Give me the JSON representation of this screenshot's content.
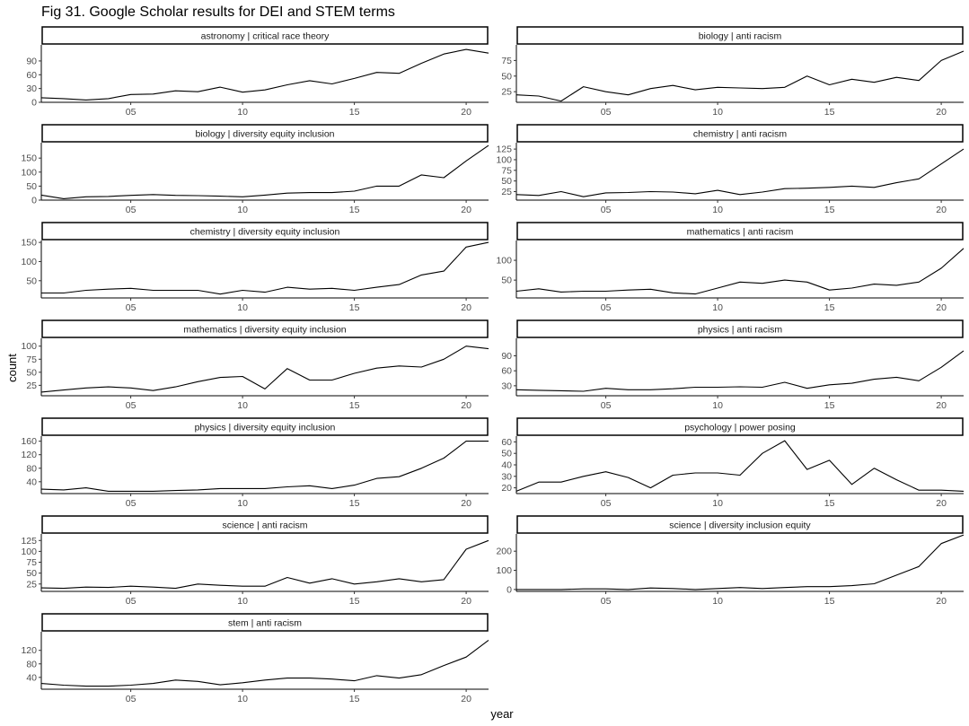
{
  "figure": {
    "title": "Fig 31. Google Scholar results for DEI and STEM terms",
    "xlabel": "year",
    "ylabel": "count"
  },
  "chart_data": {
    "type": "line",
    "layout": "facet-wrap",
    "ncol": 2,
    "x": [
      1,
      2,
      3,
      4,
      5,
      6,
      7,
      8,
      9,
      10,
      11,
      12,
      13,
      14,
      15,
      16,
      17,
      18,
      19,
      20,
      21
    ],
    "xlim": [
      1,
      21
    ],
    "xticks": [
      5,
      10,
      15,
      20
    ],
    "xtick_labels": [
      "05",
      "10",
      "15",
      "20"
    ],
    "line_color": "#000000",
    "grid": false,
    "panels": [
      {
        "label": "astronomy | critical race theory",
        "ylim": [
          0,
          125
        ],
        "yticks": [
          0,
          30,
          60,
          90
        ],
        "values": [
          10,
          8,
          5,
          8,
          17,
          18,
          25,
          23,
          33,
          22,
          27,
          38,
          47,
          40,
          52,
          65,
          63,
          85,
          105,
          115,
          107
        ]
      },
      {
        "label": "biology | anti racism",
        "ylim": [
          8,
          100
        ],
        "yticks": [
          25,
          50,
          75
        ],
        "values": [
          20,
          18,
          10,
          33,
          25,
          20,
          30,
          35,
          28,
          32,
          31,
          30,
          32,
          50,
          36,
          45,
          40,
          48,
          43,
          75,
          90
        ]
      },
      {
        "label": "biology | diversity equity inclusion",
        "ylim": [
          0,
          205
        ],
        "yticks": [
          0,
          50,
          100,
          150
        ],
        "values": [
          18,
          5,
          12,
          13,
          17,
          20,
          17,
          16,
          14,
          12,
          18,
          25,
          27,
          27,
          32,
          50,
          50,
          90,
          80,
          140,
          195
        ]
      },
      {
        "label": "chemistry | anti racism",
        "ylim": [
          5,
          140
        ],
        "yticks": [
          25,
          50,
          75,
          100,
          125
        ],
        "values": [
          18,
          16,
          25,
          13,
          22,
          23,
          25,
          24,
          20,
          28,
          18,
          24,
          32,
          33,
          35,
          38,
          35,
          46,
          55,
          90,
          125
        ]
      },
      {
        "label": "chemistry | diversity equity inclusion",
        "ylim": [
          5,
          155
        ],
        "yticks": [
          50,
          100,
          150
        ],
        "values": [
          18,
          18,
          25,
          28,
          30,
          25,
          25,
          25,
          15,
          25,
          20,
          33,
          28,
          30,
          25,
          33,
          40,
          65,
          75,
          138,
          150
        ]
      },
      {
        "label": "mathematics | anti racism",
        "ylim": [
          5,
          150
        ],
        "yticks": [
          50,
          100
        ],
        "values": [
          22,
          28,
          20,
          22,
          22,
          25,
          27,
          18,
          15,
          30,
          45,
          42,
          50,
          45,
          25,
          30,
          40,
          37,
          45,
          80,
          130
        ]
      },
      {
        "label": "mathematics | diversity equity inclusion",
        "ylim": [
          5,
          115
        ],
        "yticks": [
          25,
          50,
          75,
          100
        ],
        "values": [
          12,
          16,
          20,
          22,
          20,
          15,
          22,
          32,
          40,
          42,
          18,
          57,
          35,
          35,
          48,
          58,
          62,
          60,
          75,
          100,
          95
        ]
      },
      {
        "label": "physics | anti racism",
        "ylim": [
          10,
          125
        ],
        "yticks": [
          30,
          60,
          90
        ],
        "values": [
          22,
          21,
          20,
          19,
          25,
          22,
          22,
          24,
          27,
          27,
          28,
          27,
          37,
          25,
          32,
          35,
          43,
          47,
          40,
          67,
          100
        ]
      },
      {
        "label": "physics | diversity equity inclusion",
        "ylim": [
          5,
          175
        ],
        "yticks": [
          40,
          80,
          120,
          160
        ],
        "values": [
          18,
          16,
          22,
          12,
          12,
          12,
          14,
          16,
          20,
          20,
          20,
          25,
          28,
          20,
          30,
          50,
          55,
          80,
          110,
          160,
          160
        ]
      },
      {
        "label": "psychology | power posing",
        "ylim": [
          15,
          65
        ],
        "yticks": [
          20,
          30,
          40,
          50,
          60
        ],
        "values": [
          17,
          25,
          25,
          30,
          34,
          29,
          20,
          31,
          33,
          33,
          31,
          50,
          61,
          36,
          44,
          23,
          37,
          27,
          18,
          18,
          17
        ]
      },
      {
        "label": "science | anti racism",
        "ylim": [
          8,
          140
        ],
        "yticks": [
          25,
          50,
          75,
          100,
          125
        ],
        "values": [
          16,
          15,
          18,
          17,
          20,
          18,
          15,
          25,
          22,
          20,
          20,
          40,
          27,
          37,
          25,
          30,
          37,
          30,
          35,
          105,
          125
        ]
      },
      {
        "label": "science | diversity inclusion equity",
        "ylim": [
          -10,
          290
        ],
        "yticks": [
          0,
          100,
          200
        ],
        "values": [
          0,
          0,
          0,
          3,
          3,
          0,
          8,
          5,
          0,
          5,
          10,
          5,
          10,
          15,
          15,
          20,
          30,
          75,
          120,
          240,
          285
        ]
      },
      {
        "label": "stem | anti racism",
        "ylim": [
          5,
          175
        ],
        "yticks": [
          40,
          80,
          120
        ],
        "values": [
          22,
          17,
          14,
          14,
          17,
          22,
          32,
          28,
          18,
          24,
          32,
          38,
          38,
          35,
          30,
          45,
          38,
          48,
          75,
          100,
          150
        ]
      }
    ]
  }
}
